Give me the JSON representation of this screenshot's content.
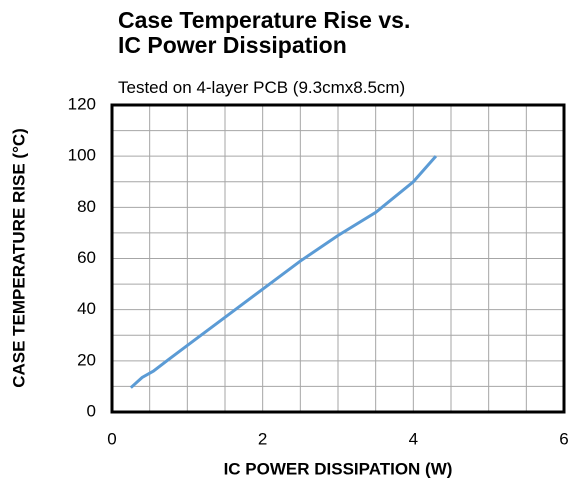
{
  "chart_data": {
    "type": "line",
    "title": "Case Temperature Rise vs. IC Power Dissipation",
    "subtitle": "Tested on 4-layer PCB (9.3cmx8.5cm)",
    "x_label": "IC POWER DISSIPATION (W)",
    "y_label": "CASE TEMPERATURE RISE (°C)",
    "x": [
      0.25,
      0.4,
      0.55,
      0.75,
      1,
      1.5,
      2,
      2.5,
      3,
      3.5,
      4,
      4.3
    ],
    "series": [
      {
        "name": "Case temperature rise",
        "color": "#5b9bd5",
        "values": [
          9.5,
          13.5,
          16,
          20.5,
          26,
          37,
          48,
          59,
          69,
          78,
          90,
          100
        ]
      }
    ],
    "xlim": [
      0,
      6
    ],
    "xticks": [
      0,
      2,
      4,
      6
    ],
    "ylim": [
      0,
      120
    ],
    "yticks": [
      0,
      20,
      40,
      60,
      80,
      100,
      120
    ],
    "x_grid": [
      0.5,
      1,
      1.5,
      2,
      2.5,
      3,
      3.5,
      4,
      4.5,
      5,
      5.5
    ],
    "y_grid": [
      10,
      20,
      30,
      40,
      50,
      60,
      70,
      80,
      90,
      100,
      110
    ],
    "grid": true
  }
}
